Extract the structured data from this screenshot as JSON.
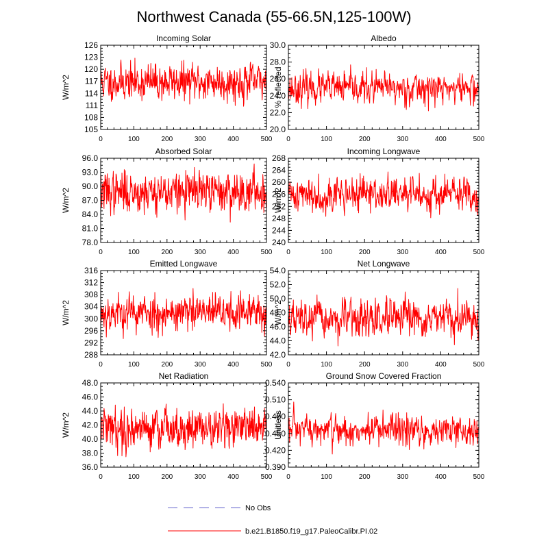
{
  "title": "Northwest Canada (55-66.5N,125-100W)",
  "legend": [
    {
      "label": "No Obs",
      "color": "#9999dd",
      "style": "dashed"
    },
    {
      "label": "b.e21.B1850.f19_g17.PaleoCalibr.PI.02",
      "color": "#ff3333",
      "style": "solid"
    }
  ],
  "colors": {
    "series": "#ff0000",
    "frame": "#000000"
  },
  "chart_data": [
    {
      "type": "line",
      "title": "Incoming Solar",
      "ylabel": "W/m^2",
      "xlim": [
        0,
        500
      ],
      "ylim": [
        105,
        126
      ],
      "xticks": [
        "0",
        "100",
        "200",
        "300",
        "400",
        "500"
      ],
      "yticks": [
        "105",
        "108",
        "111",
        "114",
        "117",
        "120",
        "123",
        "126"
      ],
      "n_points": 500,
      "mean": 116.8,
      "amplitude": 2.2,
      "min": 107.6,
      "max": 125.2,
      "series": [
        {
          "name": "b.e21.B1850.f19_g17.PaleoCalibr.PI.02",
          "seed": 11
        }
      ]
    },
    {
      "type": "line",
      "title": "Albedo",
      "ylabel": "% reflected",
      "xlim": [
        0,
        500
      ],
      "ylim": [
        20.0,
        30.0
      ],
      "xticks": [
        "0",
        "100",
        "200",
        "300",
        "400",
        "500"
      ],
      "yticks": [
        "20.0",
        "22.0",
        "24.0",
        "26.0",
        "28.0",
        "30.0"
      ],
      "n_points": 500,
      "mean": 24.9,
      "amplitude": 0.9,
      "min": 22.2,
      "max": 28.0,
      "series": [
        {
          "name": "b.e21.B1850.f19_g17.PaleoCalibr.PI.02",
          "seed": 23
        }
      ]
    },
    {
      "type": "line",
      "title": "Absorbed Solar",
      "ylabel": "W/m^2",
      "xlim": [
        0,
        500
      ],
      "ylim": [
        78.0,
        96.0
      ],
      "xticks": [
        "0",
        "100",
        "200",
        "300",
        "400",
        "500"
      ],
      "yticks": [
        "78.0",
        "81.0",
        "84.0",
        "87.0",
        "90.0",
        "93.0",
        "96.0"
      ],
      "n_points": 500,
      "mean": 88.8,
      "amplitude": 2.1,
      "min": 80.8,
      "max": 95.6,
      "series": [
        {
          "name": "b.e21.B1850.f19_g17.PaleoCalibr.PI.02",
          "seed": 37
        }
      ]
    },
    {
      "type": "line",
      "title": "Incoming Longwave",
      "ylabel": "W/m^2",
      "xlim": [
        0,
        500
      ],
      "ylim": [
        240,
        268
      ],
      "xticks": [
        "0",
        "100",
        "200",
        "300",
        "400",
        "500"
      ],
      "yticks": [
        "240",
        "244",
        "248",
        "252",
        "256",
        "260",
        "264",
        "268"
      ],
      "n_points": 500,
      "mean": 256.0,
      "amplitude": 2.8,
      "min": 244.6,
      "max": 267.0,
      "series": [
        {
          "name": "b.e21.B1850.f19_g17.PaleoCalibr.PI.02",
          "seed": 41
        }
      ]
    },
    {
      "type": "line",
      "title": "Emitted Longwave",
      "ylabel": "W/m^2",
      "xlim": [
        0,
        500
      ],
      "ylim": [
        288,
        316
      ],
      "xticks": [
        "0",
        "100",
        "200",
        "300",
        "400",
        "500"
      ],
      "yticks": [
        "288",
        "292",
        "296",
        "300",
        "304",
        "308",
        "312",
        "316"
      ],
      "n_points": 500,
      "mean": 302.0,
      "amplitude": 3.0,
      "min": 290.8,
      "max": 313.0,
      "series": [
        {
          "name": "b.e21.B1850.f19_g17.PaleoCalibr.PI.02",
          "seed": 53
        }
      ]
    },
    {
      "type": "line",
      "title": "Net Longwave",
      "ylabel": "W/m^2",
      "xlim": [
        0,
        500
      ],
      "ylim": [
        42.0,
        54.0
      ],
      "xticks": [
        "0",
        "100",
        "200",
        "300",
        "400",
        "500"
      ],
      "yticks": [
        "42.0",
        "44.0",
        "46.0",
        "48.0",
        "50.0",
        "52.0",
        "54.0"
      ],
      "n_points": 500,
      "mean": 47.0,
      "amplitude": 1.3,
      "min": 42.4,
      "max": 52.6,
      "series": [
        {
          "name": "b.e21.B1850.f19_g17.PaleoCalibr.PI.02",
          "seed": 67
        }
      ]
    },
    {
      "type": "line",
      "title": "Net Radiation",
      "ylabel": "W/m^2",
      "xlim": [
        0,
        500
      ],
      "ylim": [
        36.0,
        48.0
      ],
      "xticks": [
        "0",
        "100",
        "200",
        "300",
        "400",
        "500"
      ],
      "yticks": [
        "36.0",
        "38.0",
        "40.0",
        "42.0",
        "44.0",
        "46.0",
        "48.0"
      ],
      "n_points": 500,
      "mean": 41.6,
      "amplitude": 1.4,
      "min": 36.2,
      "max": 46.6,
      "series": [
        {
          "name": "b.e21.B1850.f19_g17.PaleoCalibr.PI.02",
          "seed": 79
        }
      ]
    },
    {
      "type": "line",
      "title": "Ground Snow Covered Fraction",
      "ylabel": "Unitless",
      "xlim": [
        0,
        500
      ],
      "ylim": [
        0.39,
        0.54
      ],
      "xticks": [
        "0",
        "100",
        "200",
        "300",
        "400",
        "500"
      ],
      "yticks": [
        "0.390",
        "0.420",
        "0.450",
        "0.480",
        "0.510",
        "0.540"
      ],
      "n_points": 500,
      "mean": 0.455,
      "amplitude": 0.014,
      "min": 0.395,
      "max": 0.526,
      "series": [
        {
          "name": "b.e21.B1850.f19_g17.PaleoCalibr.PI.02",
          "seed": 97
        }
      ]
    }
  ]
}
